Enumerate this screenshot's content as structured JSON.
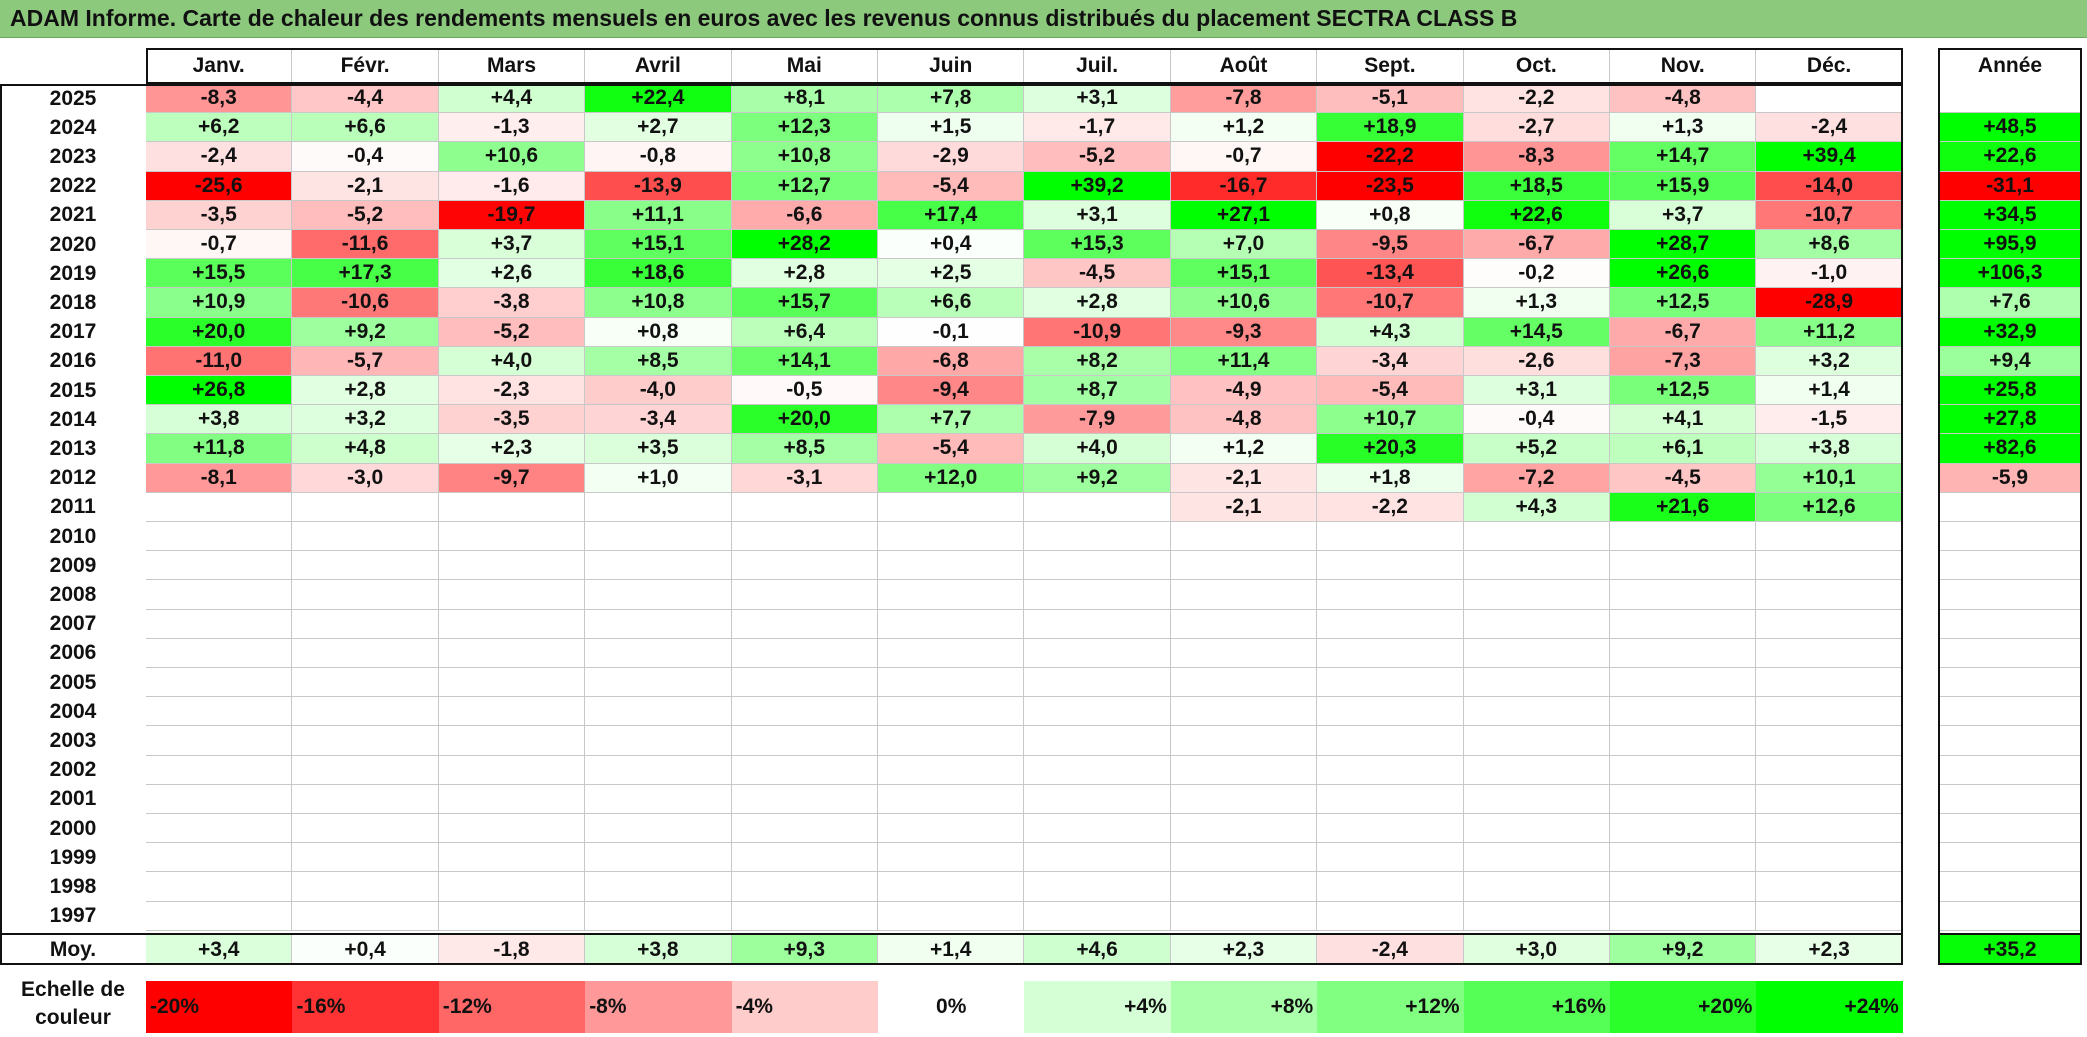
{
  "chart_data": {
    "type": "heatmap",
    "title": "ADAM Informe. Carte de chaleur des rendements mensuels en euros avec les revenus connus distribués du placement SECTRA CLASS B",
    "months": [
      "Janv.",
      "Févr.",
      "Mars",
      "Avril",
      "Mai",
      "Juin",
      "Juil.",
      "Août",
      "Sept.",
      "Oct.",
      "Nov.",
      "Déc."
    ],
    "year_header": "Année",
    "rows": [
      {
        "year": "2025",
        "values": [
          "-8,3",
          "-4,4",
          "+4,4",
          "+22,4",
          "+8,1",
          "+7,8",
          "+3,1",
          "-7,8",
          "-5,1",
          "-2,2",
          "-4,8",
          ""
        ],
        "annual": ""
      },
      {
        "year": "2024",
        "values": [
          "+6,2",
          "+6,6",
          "-1,3",
          "+2,7",
          "+12,3",
          "+1,5",
          "-1,7",
          "+1,2",
          "+18,9",
          "-2,7",
          "+1,3",
          "-2,4"
        ],
        "annual": "+48,5"
      },
      {
        "year": "2023",
        "values": [
          "-2,4",
          "-0,4",
          "+10,6",
          "-0,8",
          "+10,8",
          "-2,9",
          "-5,2",
          "-0,7",
          "-22,2",
          "-8,3",
          "+14,7",
          "+39,4"
        ],
        "annual": "+22,6"
      },
      {
        "year": "2022",
        "values": [
          "-25,6",
          "-2,1",
          "-1,6",
          "-13,9",
          "+12,7",
          "-5,4",
          "+39,2",
          "-16,7",
          "-23,5",
          "+18,5",
          "+15,9",
          "-14,0"
        ],
        "annual": "-31,1"
      },
      {
        "year": "2021",
        "values": [
          "-3,5",
          "-5,2",
          "-19,7",
          "+11,1",
          "-6,6",
          "+17,4",
          "+3,1",
          "+27,1",
          "+0,8",
          "+22,6",
          "+3,7",
          "-10,7"
        ],
        "annual": "+34,5"
      },
      {
        "year": "2020",
        "values": [
          "-0,7",
          "-11,6",
          "+3,7",
          "+15,1",
          "+28,2",
          "+0,4",
          "+15,3",
          "+7,0",
          "-9,5",
          "-6,7",
          "+28,7",
          "+8,6"
        ],
        "annual": "+95,9"
      },
      {
        "year": "2019",
        "values": [
          "+15,5",
          "+17,3",
          "+2,6",
          "+18,6",
          "+2,8",
          "+2,5",
          "-4,5",
          "+15,1",
          "-13,4",
          "-0,2",
          "+26,6",
          "-1,0"
        ],
        "annual": "+106,3"
      },
      {
        "year": "2018",
        "values": [
          "+10,9",
          "-10,6",
          "-3,8",
          "+10,8",
          "+15,7",
          "+6,6",
          "+2,8",
          "+10,6",
          "-10,7",
          "+1,3",
          "+12,5",
          "-28,9"
        ],
        "annual": "+7,6"
      },
      {
        "year": "2017",
        "values": [
          "+20,0",
          "+9,2",
          "-5,2",
          "+0,8",
          "+6,4",
          "-0,1",
          "-10,9",
          "-9,3",
          "+4,3",
          "+14,5",
          "-6,7",
          "+11,2"
        ],
        "annual": "+32,9"
      },
      {
        "year": "2016",
        "values": [
          "-11,0",
          "-5,7",
          "+4,0",
          "+8,5",
          "+14,1",
          "-6,8",
          "+8,2",
          "+11,4",
          "-3,4",
          "-2,6",
          "-7,3",
          "+3,2"
        ],
        "annual": "+9,4"
      },
      {
        "year": "2015",
        "values": [
          "+26,8",
          "+2,8",
          "-2,3",
          "-4,0",
          "-0,5",
          "-9,4",
          "+8,7",
          "-4,9",
          "-5,4",
          "+3,1",
          "+12,5",
          "+1,4"
        ],
        "annual": "+25,8"
      },
      {
        "year": "2014",
        "values": [
          "+3,8",
          "+3,2",
          "-3,5",
          "-3,4",
          "+20,0",
          "+7,7",
          "-7,9",
          "-4,8",
          "+10,7",
          "-0,4",
          "+4,1",
          "-1,5"
        ],
        "annual": "+27,8"
      },
      {
        "year": "2013",
        "values": [
          "+11,8",
          "+4,8",
          "+2,3",
          "+3,5",
          "+8,5",
          "-5,4",
          "+4,0",
          "+1,2",
          "+20,3",
          "+5,2",
          "+6,1",
          "+3,8"
        ],
        "annual": "+82,6"
      },
      {
        "year": "2012",
        "values": [
          "-8,1",
          "-3,0",
          "-9,7",
          "+1,0",
          "-3,1",
          "+12,0",
          "+9,2",
          "-2,1",
          "+1,8",
          "-7,2",
          "-4,5",
          "+10,1"
        ],
        "annual": "-5,9"
      },
      {
        "year": "2011",
        "values": [
          "",
          "",
          "",
          "",
          "",
          "",
          "",
          "-2,1",
          "-2,2",
          "+4,3",
          "+21,6",
          "+12,6"
        ],
        "annual": ""
      },
      {
        "year": "2010",
        "values": [
          "",
          "",
          "",
          "",
          "",
          "",
          "",
          "",
          "",
          "",
          "",
          ""
        ],
        "annual": ""
      },
      {
        "year": "2009",
        "values": [
          "",
          "",
          "",
          "",
          "",
          "",
          "",
          "",
          "",
          "",
          "",
          ""
        ],
        "annual": ""
      },
      {
        "year": "2008",
        "values": [
          "",
          "",
          "",
          "",
          "",
          "",
          "",
          "",
          "",
          "",
          "",
          ""
        ],
        "annual": ""
      },
      {
        "year": "2007",
        "values": [
          "",
          "",
          "",
          "",
          "",
          "",
          "",
          "",
          "",
          "",
          "",
          ""
        ],
        "annual": ""
      },
      {
        "year": "2006",
        "values": [
          "",
          "",
          "",
          "",
          "",
          "",
          "",
          "",
          "",
          "",
          "",
          ""
        ],
        "annual": ""
      },
      {
        "year": "2005",
        "values": [
          "",
          "",
          "",
          "",
          "",
          "",
          "",
          "",
          "",
          "",
          "",
          ""
        ],
        "annual": ""
      },
      {
        "year": "2004",
        "values": [
          "",
          "",
          "",
          "",
          "",
          "",
          "",
          "",
          "",
          "",
          "",
          ""
        ],
        "annual": ""
      },
      {
        "year": "2003",
        "values": [
          "",
          "",
          "",
          "",
          "",
          "",
          "",
          "",
          "",
          "",
          "",
          ""
        ],
        "annual": ""
      },
      {
        "year": "2002",
        "values": [
          "",
          "",
          "",
          "",
          "",
          "",
          "",
          "",
          "",
          "",
          "",
          ""
        ],
        "annual": ""
      },
      {
        "year": "2001",
        "values": [
          "",
          "",
          "",
          "",
          "",
          "",
          "",
          "",
          "",
          "",
          "",
          ""
        ],
        "annual": ""
      },
      {
        "year": "2000",
        "values": [
          "",
          "",
          "",
          "",
          "",
          "",
          "",
          "",
          "",
          "",
          "",
          ""
        ],
        "annual": ""
      },
      {
        "year": "1999",
        "values": [
          "",
          "",
          "",
          "",
          "",
          "",
          "",
          "",
          "",
          "",
          "",
          ""
        ],
        "annual": ""
      },
      {
        "year": "1998",
        "values": [
          "",
          "",
          "",
          "",
          "",
          "",
          "",
          "",
          "",
          "",
          "",
          ""
        ],
        "annual": ""
      },
      {
        "year": "1997",
        "values": [
          "",
          "",
          "",
          "",
          "",
          "",
          "",
          "",
          "",
          "",
          "",
          ""
        ],
        "annual": ""
      }
    ],
    "average": {
      "label": "Moy.",
      "values": [
        "+3,4",
        "+0,4",
        "-1,8",
        "+3,8",
        "+9,3",
        "+1,4",
        "+4,6",
        "+2,3",
        "-2,4",
        "+3,0",
        "+9,2",
        "+2,3"
      ],
      "annual": "+35,2"
    },
    "color_scale": {
      "label": "Echelle de couleur",
      "stops": [
        "-20%",
        "-16%",
        "-12%",
        "-8%",
        "-4%",
        "0%",
        "+4%",
        "+8%",
        "+12%",
        "+16%",
        "+20%",
        "+24%"
      ],
      "stop_values": [
        -20,
        -16,
        -12,
        -8,
        -4,
        0,
        4,
        8,
        12,
        16,
        20,
        24
      ]
    },
    "colors": {
      "negative_max": "#ff0000",
      "neutral": "#ffffff",
      "positive_max": "#00ff00",
      "title_background": "#8dc97d"
    }
  }
}
